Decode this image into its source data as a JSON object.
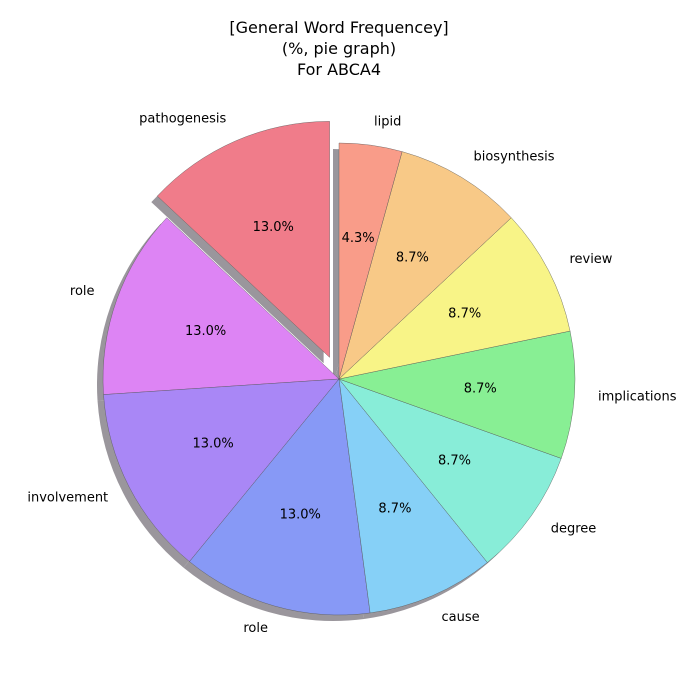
{
  "chart_data": {
    "type": "pie",
    "title_lines": [
      "[General Word Frequencey]",
      "(%, pie graph)",
      "For ABCA4"
    ],
    "categories": [
      "pathogenesis",
      "role",
      "involvement",
      "role",
      "cause",
      "degree",
      "implications",
      "review",
      "biosynthesis",
      "lipid"
    ],
    "values": [
      13.0,
      13.0,
      13.0,
      13.0,
      8.7,
      8.7,
      8.7,
      8.7,
      8.7,
      4.3
    ],
    "value_labels": [
      "13.0%",
      "13.0%",
      "13.0%",
      "13.0%",
      "8.7%",
      "8.7%",
      "8.7%",
      "8.7%",
      "8.7%",
      "4.3%"
    ],
    "colors": [
      "#F07C8A",
      "#DD84F4",
      "#A987F6",
      "#8799F6",
      "#86D0F7",
      "#88EDD8",
      "#88EF94",
      "#F8F487",
      "#F8C987",
      "#F99C89"
    ],
    "exploded": [
      true,
      false,
      false,
      false,
      false,
      false,
      false,
      false,
      false,
      false
    ],
    "shadow": true,
    "start_angle_deg": 90,
    "direction": "counterclockwise"
  }
}
